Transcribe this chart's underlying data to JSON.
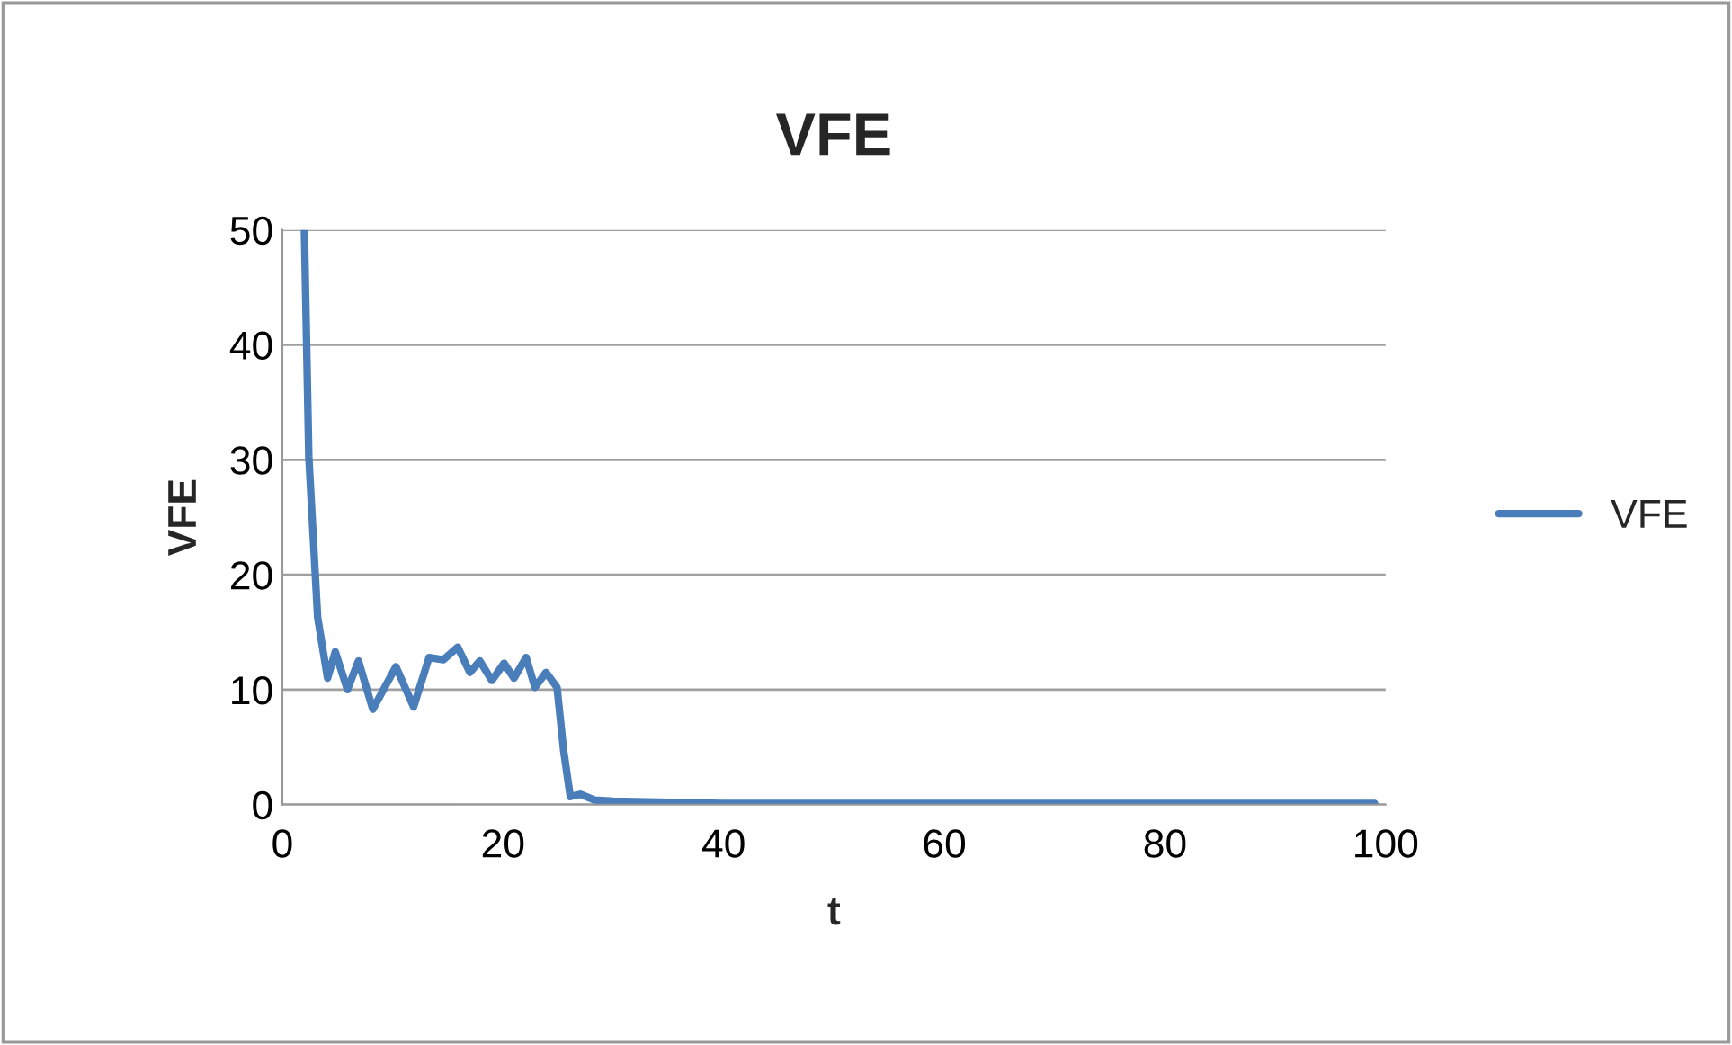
{
  "chart_data": {
    "type": "line",
    "title": "VFE",
    "xlabel": "t",
    "ylabel": "VFE",
    "xlim": [
      0,
      100
    ],
    "xticks": [
      0,
      20,
      40,
      60,
      80,
      100
    ],
    "ylim": [
      0,
      50
    ],
    "yticks": [
      0,
      10,
      20,
      30,
      40,
      50
    ],
    "grid": "y",
    "legend": "right",
    "marker": "none",
    "line_style": "solid",
    "series": [
      {
        "name": "VFE",
        "color": "#4a7ebb",
        "x": [
          2,
          2.4,
          3.2,
          4.1,
          4.8,
          5.9,
          6.9,
          8.2,
          10.3,
          11.9,
          13.3,
          14.6,
          15.9,
          17,
          17.9,
          19,
          20.1,
          21,
          22.1,
          22.9,
          23.9,
          24.9,
          25.5,
          26.1,
          27,
          28.3,
          30,
          35,
          40,
          50,
          60,
          70,
          80,
          87,
          90,
          99
        ],
        "values": [
          50,
          30.3,
          16.3,
          11,
          13.3,
          10,
          12.5,
          8.3,
          12,
          8.5,
          12.8,
          12.6,
          13.7,
          11.5,
          12.5,
          10.8,
          12.3,
          11,
          12.8,
          10.2,
          11.5,
          10.2,
          4.7,
          0.7,
          0.9,
          0.4,
          0.3,
          0.2,
          0.1,
          0.1,
          0.1,
          0.1,
          0.1,
          0.1,
          0.1,
          0.1
        ]
      }
    ]
  }
}
